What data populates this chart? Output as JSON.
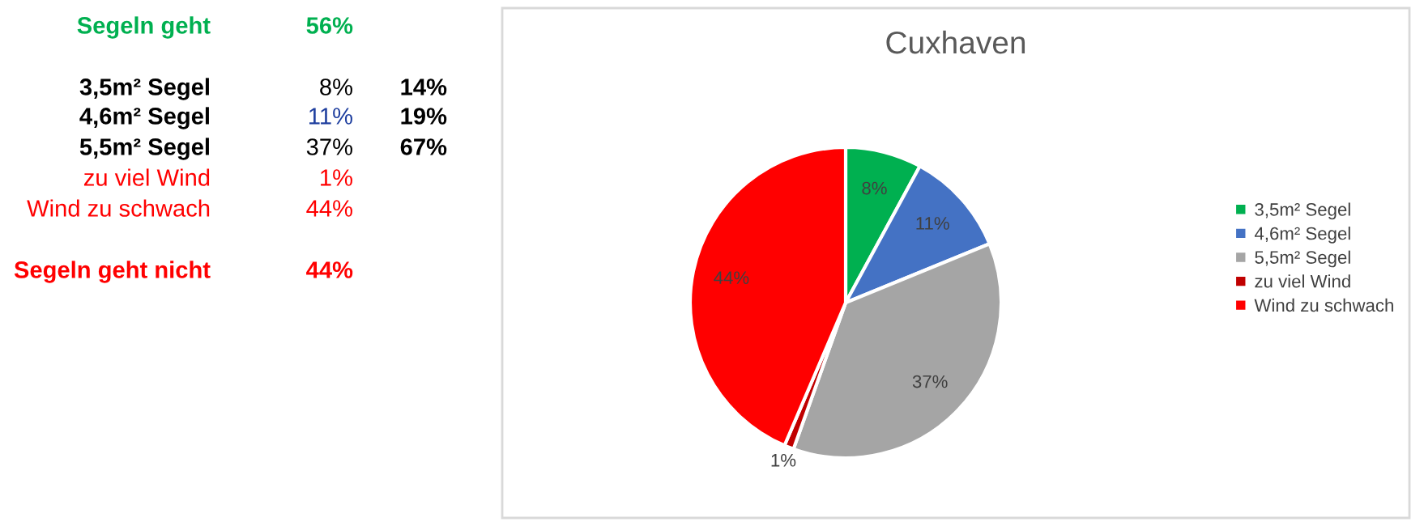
{
  "chart_data": [
    {
      "type": "other",
      "annotations": [
        "Segeln geht",
        "56%",
        "3,5m² Segel",
        "8%",
        "14%",
        "4,6m² Segel",
        "11%",
        "19%",
        "5,5m² Segel",
        "37%",
        "67%",
        "zu viel Wind",
        "1%",
        "Wind zu schwach",
        "44%",
        "Segeln geht nicht",
        "44%"
      ],
      "colors": [
        "#00b050",
        "#00b050",
        "#000000",
        "#000000",
        "#000000",
        "#000000",
        "#1f3f9f",
        "#000000",
        "#000000",
        "#000000",
        "#000000",
        "#ff0000",
        "#ff0000",
        "#ff0000",
        "#ff0000",
        "#ff0000",
        "#ff0000"
      ]
    },
    {
      "type": "pie",
      "title": "Cuxhaven",
      "categories": [
        "3,5m² Segel",
        "4,6m² Segel",
        "5,5m² Segel",
        "zu viel Wind",
        "Wind zu schwach"
      ],
      "values": [
        8,
        11,
        37,
        1,
        44
      ],
      "colors": [
        "#00b050",
        "#4472c4",
        "#a5a5a5",
        "#c00000",
        "#ff0000"
      ],
      "value_labels": [
        "8%",
        "11%",
        "37%",
        "1%",
        "44%"
      ],
      "legend": "right"
    }
  ]
}
